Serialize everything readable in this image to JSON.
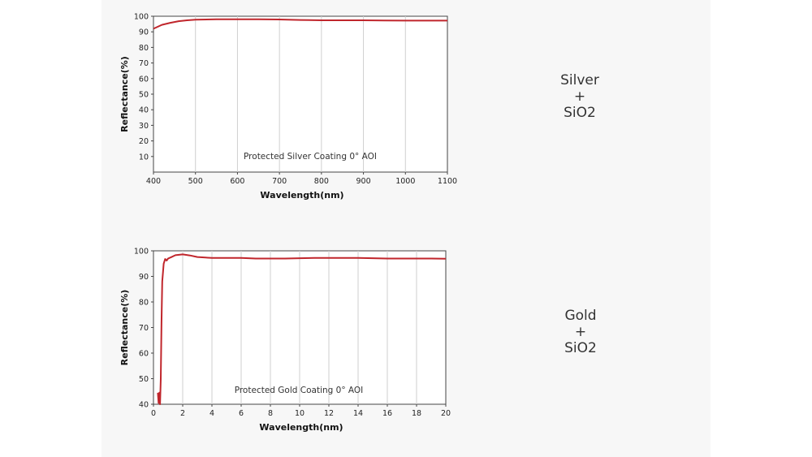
{
  "colors": {
    "curve": "#c0262c",
    "plot_bg": "#ffffff",
    "grid": "#cfcfcf",
    "axis": "#444444",
    "panel_bg": "#f7f7f7"
  },
  "labels": {
    "silver": {
      "line1": "Silver",
      "line2": "+",
      "line3": "SiO2"
    },
    "gold": {
      "line1": "Gold",
      "line2": "+",
      "line3": "SiO2"
    }
  },
  "chart_data": [
    {
      "type": "line",
      "title": "",
      "annotation": "Protected Silver Coating  0°  AOI",
      "xlabel": "Wavelength(nm)",
      "ylabel": "Reflectance(%)",
      "xlim": [
        400,
        1100
      ],
      "ylim": [
        0,
        100
      ],
      "xticks": [
        400,
        500,
        600,
        700,
        800,
        900,
        1000,
        1100
      ],
      "yticks": [
        10,
        20,
        30,
        40,
        50,
        60,
        70,
        80,
        90,
        100
      ],
      "grid": "vertical",
      "series": [
        {
          "x": [
            400,
            420,
            440,
            460,
            480,
            500,
            550,
            600,
            650,
            700,
            750,
            800,
            850,
            900,
            950,
            1000,
            1050,
            1100
          ],
          "values": [
            92.0,
            94.5,
            95.8,
            96.8,
            97.4,
            97.8,
            98.0,
            98.0,
            98.0,
            97.9,
            97.6,
            97.4,
            97.4,
            97.4,
            97.3,
            97.2,
            97.2,
            97.2
          ]
        }
      ]
    },
    {
      "type": "line",
      "title": "",
      "annotation": "Protected Gold Coating  0°  AOI",
      "xlabel": "Wavelength(nm)",
      "ylabel": "Reflectance(%)",
      "xlim": [
        0,
        20
      ],
      "ylim": [
        40,
        100
      ],
      "xticks": [
        0,
        2,
        4,
        6,
        8,
        10,
        12,
        14,
        16,
        18,
        20
      ],
      "yticks": [
        40,
        50,
        60,
        70,
        80,
        90,
        100
      ],
      "grid": "vertical",
      "series": [
        {
          "x": [
            0.3,
            0.35,
            0.4,
            0.45,
            0.5,
            0.55,
            0.6,
            0.7,
            0.8,
            0.9,
            1.0,
            1.2,
            1.5,
            2.0,
            2.5,
            3.0,
            4.0,
            5.0,
            6.0,
            7.0,
            8.0,
            9.0,
            10.0,
            11.0,
            12.0,
            13.0,
            14.0,
            15.0,
            16.0,
            17.0,
            18.0,
            19.0,
            20.0
          ],
          "values": [
            44.5,
            40.5,
            44.5,
            40.0,
            50.0,
            72.0,
            88.0,
            95.0,
            96.8,
            96.2,
            97.0,
            97.5,
            98.3,
            98.6,
            98.2,
            97.6,
            97.2,
            97.2,
            97.2,
            97.0,
            97.0,
            97.0,
            97.1,
            97.2,
            97.2,
            97.2,
            97.2,
            97.1,
            97.0,
            97.0,
            97.0,
            97.0,
            96.9
          ]
        }
      ]
    }
  ]
}
